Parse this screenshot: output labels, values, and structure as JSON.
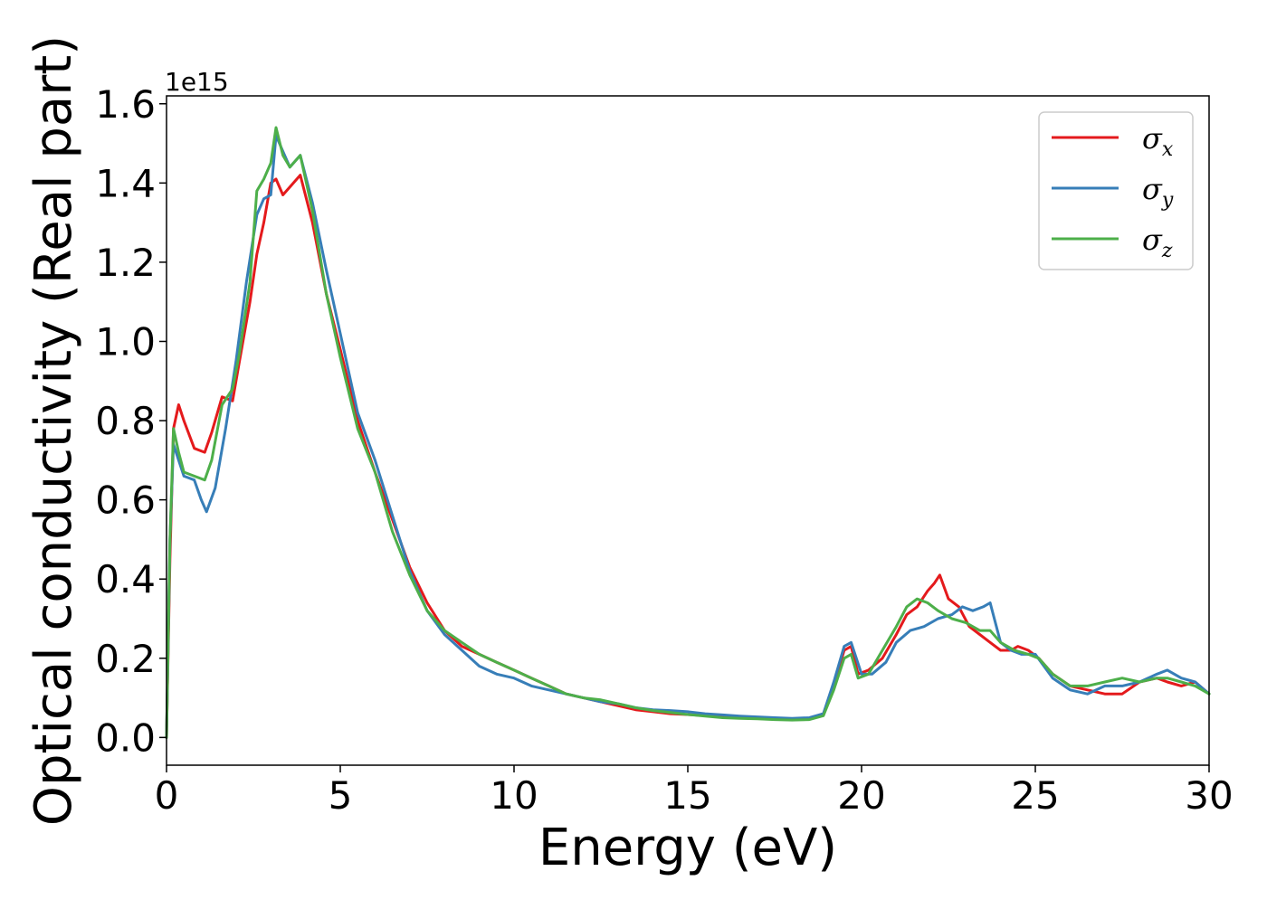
{
  "chart_data": {
    "type": "line",
    "title": "",
    "xlabel": "Energy (eV)",
    "ylabel": "Optical conductivity (Real part)",
    "y_offset_label": "1e15",
    "xlim": [
      0,
      30
    ],
    "ylim": [
      -0.07,
      1.62
    ],
    "x_ticks": [
      0,
      5,
      10,
      15,
      20,
      25,
      30
    ],
    "x_tick_labels": [
      "0",
      "5",
      "10",
      "15",
      "20",
      "25",
      "30"
    ],
    "y_ticks": [
      0.0,
      0.2,
      0.4,
      0.6,
      0.8,
      1.0,
      1.2,
      1.4,
      1.6
    ],
    "y_tick_labels": [
      "0.0",
      "0.2",
      "0.4",
      "0.6",
      "0.8",
      "1.0",
      "1.2",
      "1.4",
      "1.6"
    ],
    "grid": false,
    "legend_position": "top-right",
    "series": [
      {
        "name": "σx",
        "legend_symbol": "σ",
        "legend_sub": "x",
        "color": "#e41a1c",
        "x": [
          0,
          0.1,
          0.2,
          0.35,
          0.5,
          0.8,
          1.1,
          1.3,
          1.6,
          1.9,
          2.1,
          2.4,
          2.6,
          2.8,
          3.0,
          3.15,
          3.35,
          3.55,
          3.85,
          4.2,
          4.6,
          5.0,
          5.5,
          6.0,
          6.5,
          7.0,
          7.5,
          8.0,
          8.5,
          9.0,
          9.5,
          10.0,
          10.5,
          11.0,
          11.5,
          12.0,
          12.5,
          13.0,
          13.5,
          14.0,
          14.5,
          15.0,
          15.5,
          16.0,
          16.5,
          17.0,
          17.5,
          18.0,
          18.5,
          18.9,
          19.2,
          19.5,
          19.7,
          19.9,
          20.2,
          20.6,
          21.0,
          21.3,
          21.6,
          21.9,
          22.1,
          22.25,
          22.5,
          22.8,
          23.1,
          23.4,
          23.7,
          24.0,
          24.3,
          24.5,
          24.8,
          25.1,
          25.5,
          26.0,
          26.5,
          27.0,
          27.5,
          28.0,
          28.5,
          28.8,
          29.2,
          29.6,
          30.0
        ],
        "y": [
          0.0,
          0.45,
          0.78,
          0.84,
          0.8,
          0.73,
          0.72,
          0.77,
          0.86,
          0.85,
          0.95,
          1.1,
          1.22,
          1.3,
          1.4,
          1.41,
          1.37,
          1.39,
          1.42,
          1.3,
          1.12,
          0.98,
          0.8,
          0.67,
          0.55,
          0.43,
          0.34,
          0.27,
          0.23,
          0.21,
          0.19,
          0.17,
          0.15,
          0.13,
          0.11,
          0.1,
          0.09,
          0.08,
          0.07,
          0.065,
          0.06,
          0.058,
          0.055,
          0.053,
          0.05,
          0.05,
          0.048,
          0.046,
          0.048,
          0.06,
          0.13,
          0.22,
          0.23,
          0.16,
          0.17,
          0.2,
          0.26,
          0.31,
          0.33,
          0.37,
          0.39,
          0.41,
          0.35,
          0.33,
          0.28,
          0.26,
          0.24,
          0.22,
          0.22,
          0.23,
          0.22,
          0.2,
          0.16,
          0.13,
          0.12,
          0.11,
          0.11,
          0.14,
          0.15,
          0.14,
          0.13,
          0.14,
          0.11
        ]
      },
      {
        "name": "σy",
        "legend_symbol": "σ",
        "legend_sub": "y",
        "color": "#377eb8",
        "x": [
          0,
          0.1,
          0.2,
          0.35,
          0.5,
          0.8,
          1.0,
          1.15,
          1.4,
          1.7,
          2.0,
          2.3,
          2.6,
          2.8,
          3.0,
          3.15,
          3.35,
          3.55,
          3.85,
          4.2,
          4.6,
          5.0,
          5.5,
          6.0,
          6.5,
          7.0,
          7.5,
          8.0,
          8.5,
          9.0,
          9.5,
          10.0,
          10.5,
          11.0,
          11.5,
          12.0,
          12.5,
          13.0,
          13.5,
          14.0,
          14.5,
          15.0,
          15.5,
          16.0,
          16.5,
          17.0,
          17.5,
          18.0,
          18.5,
          18.9,
          19.2,
          19.5,
          19.7,
          20.0,
          20.3,
          20.7,
          21.0,
          21.4,
          21.8,
          22.2,
          22.6,
          22.9,
          23.2,
          23.5,
          23.7,
          24.0,
          24.3,
          24.6,
          25.0,
          25.5,
          26.0,
          26.5,
          27.0,
          27.5,
          28.0,
          28.5,
          28.8,
          29.2,
          29.6,
          30.0
        ],
        "y": [
          0.0,
          0.5,
          0.74,
          0.7,
          0.66,
          0.65,
          0.6,
          0.57,
          0.63,
          0.78,
          0.95,
          1.15,
          1.32,
          1.36,
          1.37,
          1.52,
          1.48,
          1.44,
          1.47,
          1.35,
          1.18,
          1.02,
          0.82,
          0.7,
          0.56,
          0.42,
          0.32,
          0.26,
          0.22,
          0.18,
          0.16,
          0.15,
          0.13,
          0.12,
          0.11,
          0.1,
          0.09,
          0.085,
          0.075,
          0.07,
          0.068,
          0.065,
          0.06,
          0.057,
          0.054,
          0.052,
          0.05,
          0.048,
          0.05,
          0.06,
          0.14,
          0.23,
          0.24,
          0.16,
          0.16,
          0.19,
          0.24,
          0.27,
          0.28,
          0.3,
          0.31,
          0.33,
          0.32,
          0.33,
          0.34,
          0.24,
          0.22,
          0.21,
          0.21,
          0.15,
          0.12,
          0.11,
          0.13,
          0.13,
          0.14,
          0.16,
          0.17,
          0.15,
          0.14,
          0.11
        ]
      },
      {
        "name": "σz",
        "legend_symbol": "σ",
        "legend_sub": "z",
        "color": "#4daf4a",
        "x": [
          0,
          0.1,
          0.2,
          0.35,
          0.5,
          0.8,
          1.1,
          1.3,
          1.6,
          1.9,
          2.1,
          2.4,
          2.6,
          2.8,
          3.0,
          3.15,
          3.35,
          3.55,
          3.85,
          4.2,
          4.6,
          5.0,
          5.5,
          6.0,
          6.5,
          7.0,
          7.5,
          8.0,
          8.5,
          9.0,
          9.5,
          10.0,
          10.5,
          11.0,
          11.5,
          12.0,
          12.5,
          13.0,
          13.5,
          14.0,
          14.5,
          15.0,
          15.5,
          16.0,
          16.5,
          17.0,
          17.5,
          18.0,
          18.5,
          18.9,
          19.2,
          19.5,
          19.7,
          19.9,
          20.2,
          20.6,
          21.0,
          21.3,
          21.6,
          21.9,
          22.2,
          22.6,
          23.0,
          23.4,
          23.7,
          24.0,
          24.4,
          24.8,
          25.1,
          25.5,
          26.0,
          26.5,
          27.0,
          27.5,
          28.0,
          28.5,
          28.8,
          29.2,
          29.6,
          30.0
        ],
        "y": [
          0.0,
          0.5,
          0.78,
          0.72,
          0.67,
          0.66,
          0.65,
          0.7,
          0.84,
          0.88,
          0.97,
          1.15,
          1.38,
          1.41,
          1.45,
          1.54,
          1.47,
          1.44,
          1.47,
          1.33,
          1.12,
          0.96,
          0.78,
          0.67,
          0.52,
          0.41,
          0.32,
          0.27,
          0.24,
          0.21,
          0.19,
          0.17,
          0.15,
          0.13,
          0.11,
          0.1,
          0.095,
          0.085,
          0.075,
          0.068,
          0.063,
          0.058,
          0.054,
          0.05,
          0.048,
          0.047,
          0.045,
          0.044,
          0.045,
          0.055,
          0.12,
          0.2,
          0.21,
          0.15,
          0.16,
          0.22,
          0.28,
          0.33,
          0.35,
          0.34,
          0.32,
          0.3,
          0.29,
          0.27,
          0.27,
          0.24,
          0.22,
          0.21,
          0.2,
          0.16,
          0.13,
          0.13,
          0.14,
          0.15,
          0.14,
          0.15,
          0.15,
          0.14,
          0.13,
          0.11
        ]
      }
    ]
  }
}
